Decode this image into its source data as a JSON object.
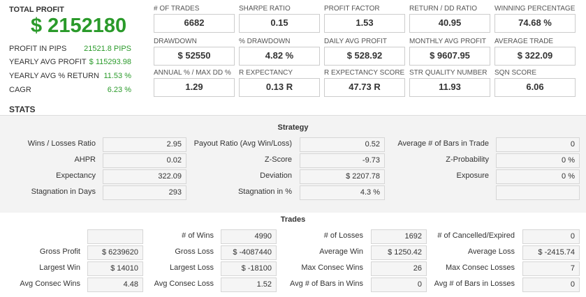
{
  "header": {
    "total_profit_label": "TOTAL PROFIT",
    "total_profit": "$ 2152180"
  },
  "summary": [
    {
      "label": "PROFIT IN PIPS",
      "value": "21521.8 PIPS"
    },
    {
      "label": "YEARLY AVG PROFIT",
      "value": "$ 115293.98"
    },
    {
      "label": "YEARLY AVG % RETURN",
      "value": "11.53 %"
    },
    {
      "label": "CAGR",
      "value": "6.23 %"
    }
  ],
  "metrics": [
    [
      {
        "label": "# OF TRADES",
        "value": "6682"
      },
      {
        "label": "SHARPE RATIO",
        "value": "0.15"
      },
      {
        "label": "PROFIT FACTOR",
        "value": "1.53"
      },
      {
        "label": "RETURN / DD RATIO",
        "value": "40.95"
      },
      {
        "label": "WINNING PERCENTAGE",
        "value": "74.68 %"
      }
    ],
    [
      {
        "label": "DRAWDOWN",
        "value": "$ 52550"
      },
      {
        "label": "% DRAWDOWN",
        "value": "4.82 %"
      },
      {
        "label": "DAILY AVG PROFIT",
        "value": "$ 528.92"
      },
      {
        "label": "MONTHLY AVG PROFIT",
        "value": "$ 9607.95"
      },
      {
        "label": "AVERAGE TRADE",
        "value": "$ 322.09"
      }
    ],
    [
      {
        "label": "ANNUAL % / MAX DD %",
        "value": "1.29"
      },
      {
        "label": "R EXPECTANCY",
        "value": "0.13 R"
      },
      {
        "label": "R EXPECTANCY SCORE",
        "value": "47.73 R"
      },
      {
        "label": "STR QUALITY NUMBER",
        "value": "11.93"
      },
      {
        "label": "SQN SCORE",
        "value": "6.06"
      }
    ]
  ],
  "stats_title": "STATS",
  "strategy": {
    "title": "Strategy",
    "rows": [
      [
        {
          "label": "Wins / Losses Ratio",
          "value": "2.95"
        },
        {
          "label": "Payout Ratio (Avg Win/Loss)",
          "value": "0.52"
        },
        {
          "label": "Average # of Bars in Trade",
          "value": "0"
        }
      ],
      [
        {
          "label": "AHPR",
          "value": "0.02"
        },
        {
          "label": "Z-Score",
          "value": "-9.73"
        },
        {
          "label": "Z-Probability",
          "value": "0 %"
        }
      ],
      [
        {
          "label": "Expectancy",
          "value": "322.09"
        },
        {
          "label": "Deviation",
          "value": "$ 2207.78"
        },
        {
          "label": "Exposure",
          "value": "0 %"
        }
      ],
      [
        {
          "label": "Stagnation in Days",
          "value": "293"
        },
        {
          "label": "Stagnation in %",
          "value": "4.3 %"
        }
      ]
    ]
  },
  "trades": {
    "title": "Trades",
    "rows": [
      [
        {
          "label": "# of Wins",
          "value": "4990"
        },
        {
          "label": "# of Losses",
          "value": "1692"
        },
        {
          "label": "# of Cancelled/Expired",
          "value": "0"
        }
      ],
      [
        {
          "label": "Gross Profit",
          "value": "$ 6239620"
        },
        {
          "label": "Gross Loss",
          "value": "$ -4087440"
        },
        {
          "label": "Average Win",
          "value": "$ 1250.42"
        },
        {
          "label": "Average Loss",
          "value": "$ -2415.74"
        }
      ],
      [
        {
          "label": "Largest Win",
          "value": "$ 14010"
        },
        {
          "label": "Largest Loss",
          "value": "$ -18100"
        },
        {
          "label": "Max Consec Wins",
          "value": "26"
        },
        {
          "label": "Max Consec Losses",
          "value": "7"
        }
      ],
      [
        {
          "label": "Avg Consec Wins",
          "value": "4.48"
        },
        {
          "label": "Avg Consec Loss",
          "value": "1.52"
        },
        {
          "label": "Avg # of Bars in Wins",
          "value": "0"
        },
        {
          "label": "Avg # of Bars in Losses",
          "value": "0"
        }
      ]
    ]
  }
}
